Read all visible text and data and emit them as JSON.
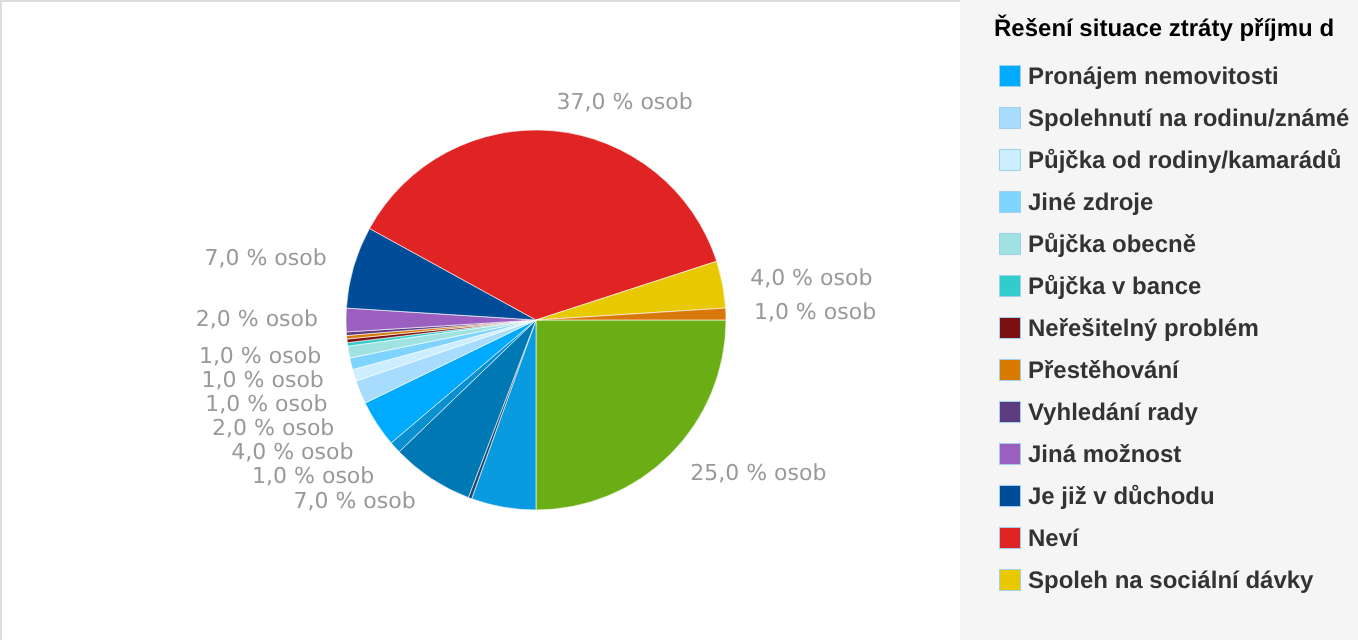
{
  "chart_data": {
    "type": "pie",
    "title": "Řešení situace ztráty příjmu d",
    "legend": "right",
    "categories": [
      null,
      null,
      null,
      null,
      null,
      "Pronájem nemovitosti",
      "Spolehnutí na rodinu/známé",
      "Půjčka od rodiny/kamarádů",
      "Jiné zdroje",
      "Půjčka obecně",
      "Půjčka v bance",
      "Neřešitelný problém",
      "Přestěhování",
      "Vyhledání rady",
      "Jiná možnost",
      "Je již v důchodu",
      "Neví",
      "Spoleh na sociální dávky",
      null
    ],
    "values": [
      25,
      5.5,
      0.3,
      7,
      1,
      4,
      2,
      1,
      1,
      1,
      0.3,
      0.3,
      0.3,
      0.3,
      2,
      7,
      37,
      4,
      1
    ],
    "colors": [
      "#6aad14",
      "#0a9ae0",
      "#1d4a6e",
      "#0078b4",
      "#0a8fd0",
      "#00aaff",
      "#a8dcff",
      "#cdeeff",
      "#7fd4ff",
      "#a0e2e2",
      "#33cccc",
      "#7a1010",
      "#d97a00",
      "#5e3c80",
      "#9a5fbf",
      "#004c99",
      "#e02424",
      "#e8c800",
      "#d9780a"
    ],
    "value_labels": [
      "25,0 % osob",
      null,
      null,
      "7,0 % osob",
      "1,0 % osob",
      "4,0 % osob",
      "2,0 % osob",
      "1,0 % osob",
      "1,0 % osob",
      "1,0 % osob",
      null,
      null,
      null,
      null,
      "2,0 % osob",
      "7,0 % osob",
      "37,0 % osob",
      "4,0 % osob",
      "1,0 % osob"
    ]
  }
}
